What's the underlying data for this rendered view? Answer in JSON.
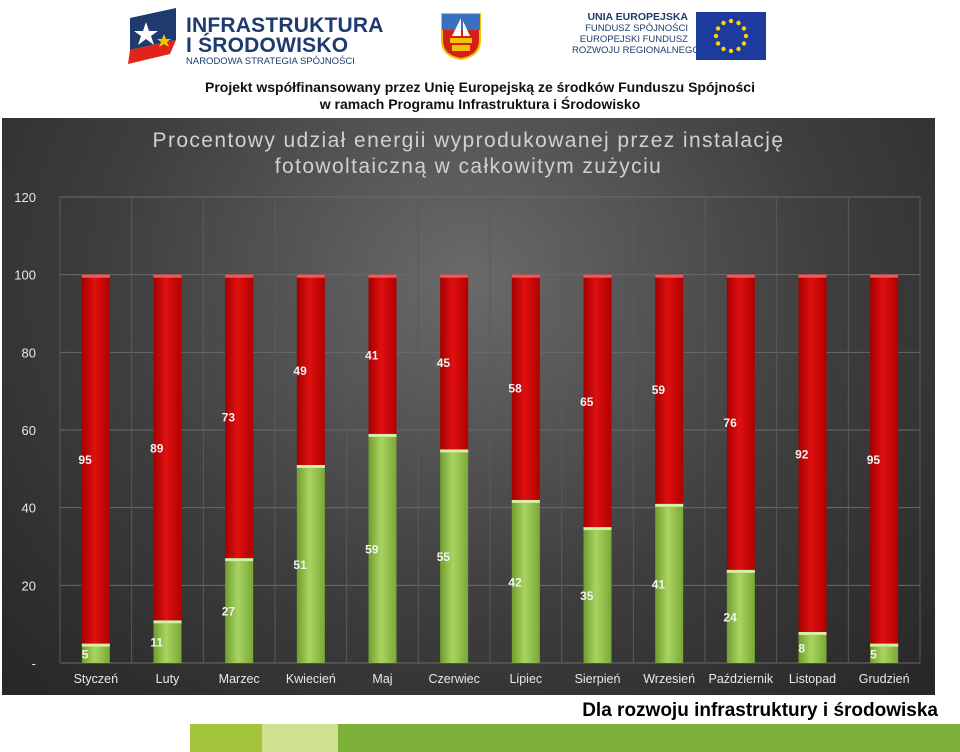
{
  "header": {
    "brand_line1": "INFRASTRUKTURA",
    "brand_line2": "I ŚRODOWISKO",
    "brand_line3": "NARODOWA STRATEGIA SPÓJNOŚCI",
    "eu_lines": [
      "UNIA EUROPEJSKA",
      "FUNDUSZ SPÓJNOŚCI",
      "EUROPEJSKI FUNDUSZ",
      "ROZWOJU REGIONALNEGO"
    ],
    "cofinance_line1": "Projekt współfinansowany przez Unię Europejską ze środków Funduszu Spójności",
    "cofinance_line2": "w ramach Programu Infrastruktura i Środowisko"
  },
  "colors": {
    "pv_share": "#8fc34a",
    "remaining": "#cc0a0a",
    "panel": "#3a3a3a",
    "axis_text": "#e8e8e8",
    "brand": "#1f3a6e"
  },
  "chart_data": {
    "type": "bar",
    "stacked": true,
    "title": "Procentowy udział energii wyprodukowanej przez instalację fotowoltaiczną w całkowitym zużyciu",
    "title_lines": [
      "Procentowy udział energii wyprodukowanej przez instalację",
      "fotowoltaiczną w całkowitym zużyciu"
    ],
    "categories": [
      "Styczeń",
      "Luty",
      "Marzec",
      "Kwiecień",
      "Maj",
      "Czerwiec",
      "Lipiec",
      "Sierpień",
      "Wrzesień",
      "Październik",
      "Listopad",
      "Grudzień"
    ],
    "series": [
      {
        "values": [
          5,
          11,
          27,
          51,
          59,
          55,
          42,
          35,
          41,
          24,
          8,
          5
        ]
      },
      {
        "values": [
          95,
          89,
          73,
          49,
          41,
          45,
          58,
          65,
          59,
          76,
          92,
          95
        ]
      }
    ],
    "ylim": [
      0,
      120
    ],
    "yticks": [
      "-",
      "20",
      "40",
      "60",
      "80",
      "100",
      "120"
    ],
    "grid": true
  },
  "footer": {
    "slogan": "Dla rozwoju infrastruktury i środowiska"
  }
}
